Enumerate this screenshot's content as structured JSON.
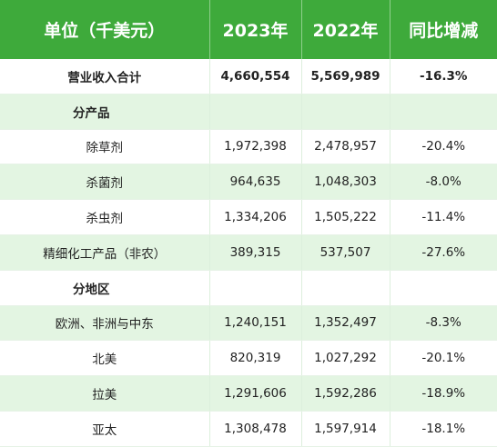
{
  "header": {
    "col_label": "单位（千美元）",
    "col_2023": "2023年",
    "col_2022": "2022年",
    "col_change": "同比增减"
  },
  "rows": [
    {
      "label": "营业收入合计",
      "v2023": "4,660,554",
      "v2022": "5,569,989",
      "change": "-16.3%"
    },
    {
      "label": "分产品",
      "v2023": "",
      "v2022": "",
      "change": ""
    },
    {
      "label": "除草剂",
      "v2023": "1,972,398",
      "v2022": "2,478,957",
      "change": "-20.4%"
    },
    {
      "label": "杀菌剂",
      "v2023": "964,635",
      "v2022": "1,048,303",
      "change": "-8.0%"
    },
    {
      "label": "杀虫剂",
      "v2023": "1,334,206",
      "v2022": "1,505,222",
      "change": "-11.4%"
    },
    {
      "label": "精细化工产品（非农）",
      "v2023": "389,315",
      "v2022": "537,507",
      "change": "-27.6%"
    },
    {
      "label": "分地区",
      "v2023": "",
      "v2022": "",
      "change": ""
    },
    {
      "label": "欧洲、非洲与中东",
      "v2023": "1,240,151",
      "v2022": "1,352,497",
      "change": "-8.3%"
    },
    {
      "label": "北美",
      "v2023": "820,319",
      "v2022": "1,027,292",
      "change": "-20.1%"
    },
    {
      "label": "拉美",
      "v2023": "1,291,606",
      "v2022": "1,592,286",
      "change": "-18.9%"
    },
    {
      "label": "亚太",
      "v2023": "1,308,478",
      "v2022": "1,597,914",
      "change": "-18.1%"
    }
  ],
  "colors": {
    "header_bg": "#3eaa3b",
    "header_text": "#ffffff",
    "row_alt_bg": "#e3f5e2",
    "row_bg": "#ffffff"
  }
}
